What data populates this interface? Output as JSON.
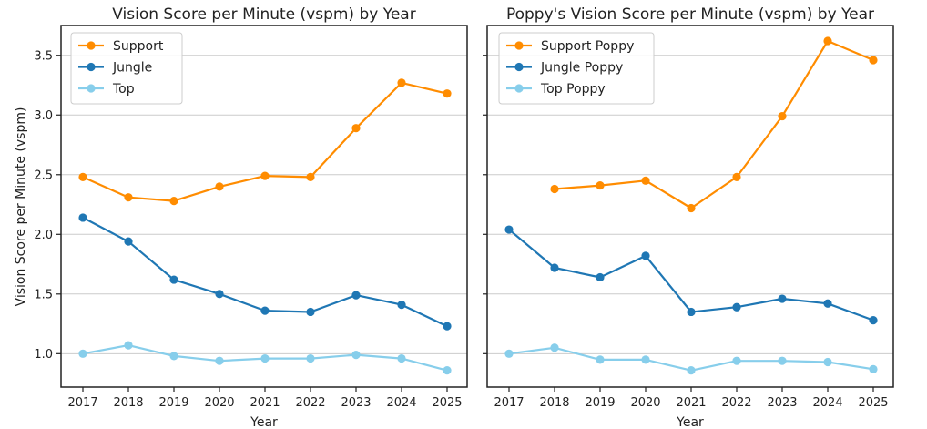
{
  "chart_data": [
    {
      "type": "line",
      "title": "Vision Score per Minute (vspm) by Year",
      "xlabel": "Year",
      "ylabel": "Vision Score per Minute (vspm)",
      "x": [
        2017,
        2018,
        2019,
        2020,
        2021,
        2022,
        2023,
        2024,
        2025
      ],
      "ylim": [
        0.72,
        3.75
      ],
      "yticks": [
        "1.0",
        "1.5",
        "2.0",
        "2.5",
        "3.0",
        "3.5"
      ],
      "grid": "horizontal",
      "legend_position": "top-left",
      "series": [
        {
          "name": "Support",
          "color": "#ff8c00",
          "values": [
            2.48,
            2.31,
            2.28,
            2.4,
            2.49,
            2.48,
            2.89,
            3.27,
            3.18
          ]
        },
        {
          "name": "Jungle",
          "color": "#1f77b4",
          "values": [
            2.14,
            1.94,
            1.62,
            1.5,
            1.36,
            1.35,
            1.49,
            1.41,
            1.23
          ]
        },
        {
          "name": "Top",
          "color": "#87ceeb",
          "values": [
            1.0,
            1.07,
            0.98,
            0.94,
            0.96,
            0.96,
            0.99,
            0.96,
            0.86
          ]
        }
      ]
    },
    {
      "type": "line",
      "title": "Poppy's Vision Score per Minute (vspm) by Year",
      "xlabel": "Year",
      "ylabel": "",
      "x": [
        2017,
        2018,
        2019,
        2020,
        2021,
        2022,
        2023,
        2024,
        2025
      ],
      "ylim": [
        0.72,
        3.75
      ],
      "yticks": [
        "1.0",
        "1.5",
        "2.0",
        "2.5",
        "3.0",
        "3.5"
      ],
      "grid": "horizontal",
      "legend_position": "top-left",
      "series": [
        {
          "name": "Support Poppy",
          "color": "#ff8c00",
          "values": [
            null,
            2.38,
            2.41,
            2.45,
            2.22,
            2.48,
            2.99,
            3.62,
            3.46
          ]
        },
        {
          "name": "Jungle Poppy",
          "color": "#1f77b4",
          "values": [
            2.04,
            1.72,
            1.64,
            1.82,
            1.35,
            1.39,
            1.46,
            1.42,
            1.28
          ]
        },
        {
          "name": "Top Poppy",
          "color": "#87ceeb",
          "values": [
            1.0,
            1.05,
            0.95,
            0.95,
            0.86,
            0.94,
            0.94,
            0.93,
            0.87
          ]
        }
      ]
    }
  ]
}
